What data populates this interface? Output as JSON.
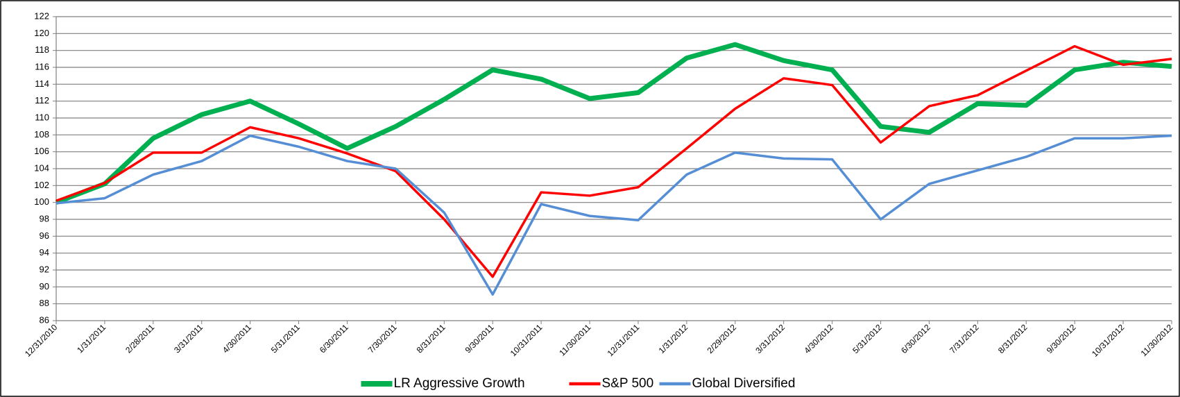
{
  "chart_data": {
    "type": "line",
    "categories": [
      "12/31/2010",
      "1/31/2011",
      "2/28/2011",
      "3/31/2011",
      "4/30/2011",
      "5/31/2011",
      "6/30/2011",
      "7/30/2011",
      "8/31/2011",
      "9/30/2011",
      "10/31/2011",
      "11/30/2011",
      "12/31/2011",
      "1/31/2012",
      "2/29/2012",
      "3/31/2012",
      "4/30/2012",
      "5/31/2012",
      "6/30/2012",
      "7/31/2012",
      "8/31/2012",
      "9/30/2012",
      "10/31/2012",
      "11/30/2012"
    ],
    "series": [
      {
        "name": "LR Aggressive Growth",
        "color": "#00b050",
        "width": 7,
        "values": [
          100,
          102.2,
          107.6,
          110.4,
          112,
          109.3,
          106.4,
          109,
          112.2,
          115.7,
          114.6,
          112.3,
          113,
          117.1,
          118.7,
          116.8,
          115.7,
          109,
          108.3,
          111.7,
          111.5,
          115.7,
          116.6,
          116.1
        ]
      },
      {
        "name": "S&P 500",
        "color": "#ff0000",
        "width": 3.5,
        "values": [
          100.2,
          102.3,
          105.9,
          105.9,
          108.9,
          107.6,
          105.8,
          103.7,
          98,
          91.2,
          101.2,
          100.8,
          101.8,
          106.4,
          111.1,
          114.7,
          113.9,
          107.1,
          111.4,
          112.7,
          115.6,
          118.5,
          116.3,
          117
        ]
      },
      {
        "name": "Global Diversified",
        "color": "#558ed5",
        "width": 3.5,
        "values": [
          99.9,
          100.5,
          103.3,
          104.9,
          107.9,
          106.6,
          104.9,
          104,
          98.8,
          89.1,
          99.8,
          98.4,
          97.9,
          103.3,
          105.9,
          105.2,
          105.1,
          98,
          102.2,
          103.8,
          105.4,
          107.6,
          107.6,
          107.9
        ]
      }
    ],
    "ylim": [
      86,
      122
    ],
    "yticks": [
      86,
      88,
      90,
      92,
      94,
      96,
      98,
      100,
      102,
      104,
      106,
      108,
      110,
      112,
      114,
      116,
      118,
      120,
      122
    ],
    "grid": true
  }
}
